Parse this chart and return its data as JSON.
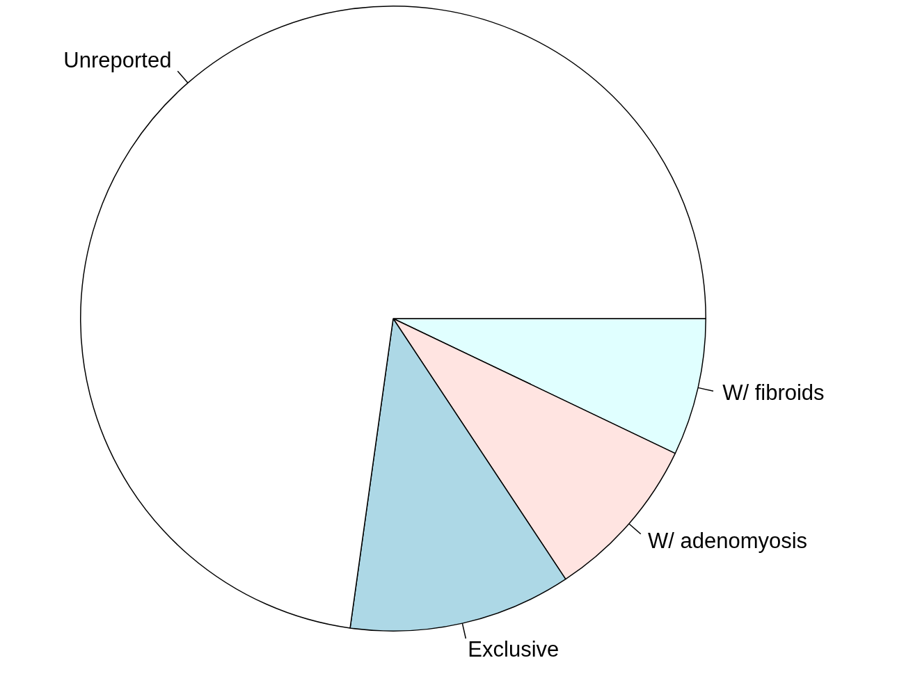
{
  "chart_data": {
    "type": "pie",
    "categories": [
      "W/ fibroids",
      "W/ adenomyosis",
      "Exclusive",
      "Unreported"
    ],
    "values": [
      7.1,
      8.6,
      11.5,
      72.8
    ],
    "colors": [
      "#e0ffff",
      "#ffe4e1",
      "#add8e6",
      "#ffffff"
    ],
    "legend": false
  }
}
